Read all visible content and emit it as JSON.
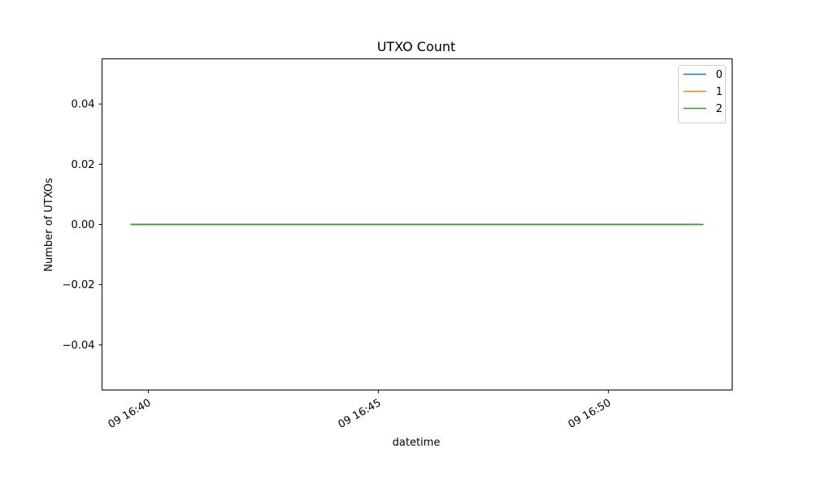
{
  "chart_data": {
    "type": "line",
    "title": "UTXO Count",
    "xlabel": "datetime",
    "ylabel": "Number of UTXOs",
    "x_range": [
      "09 16:39:37",
      "09 16:52:04"
    ],
    "xticks": [
      {
        "label": "09 16:40",
        "value": "09 16:40:00"
      },
      {
        "label": "09 16:45",
        "value": "09 16:45:00"
      },
      {
        "label": "09 16:50",
        "value": "09 16:50:00"
      }
    ],
    "ylim": [
      -0.055,
      0.055
    ],
    "yticks": [
      {
        "label": "0.04",
        "value": 0.04
      },
      {
        "label": "0.02",
        "value": 0.02
      },
      {
        "label": "0.00",
        "value": 0.0
      },
      {
        "label": "−0.02",
        "value": -0.02
      },
      {
        "label": "−0.04",
        "value": -0.04
      }
    ],
    "grid": false,
    "legend_position": "top-right",
    "series": [
      {
        "name": "0",
        "color": "#1f77b4",
        "points": [
          [
            "09 16:39:37",
            0
          ],
          [
            "09 16:52:04",
            0
          ]
        ]
      },
      {
        "name": "1",
        "color": "#ff7f0e",
        "points": [
          [
            "09 16:39:37",
            0
          ],
          [
            "09 16:52:00",
            0
          ]
        ]
      },
      {
        "name": "2",
        "color": "#2ca02c",
        "points": [
          [
            "09 16:39:37",
            0
          ],
          [
            "09 16:52:00",
            0
          ]
        ]
      }
    ]
  }
}
